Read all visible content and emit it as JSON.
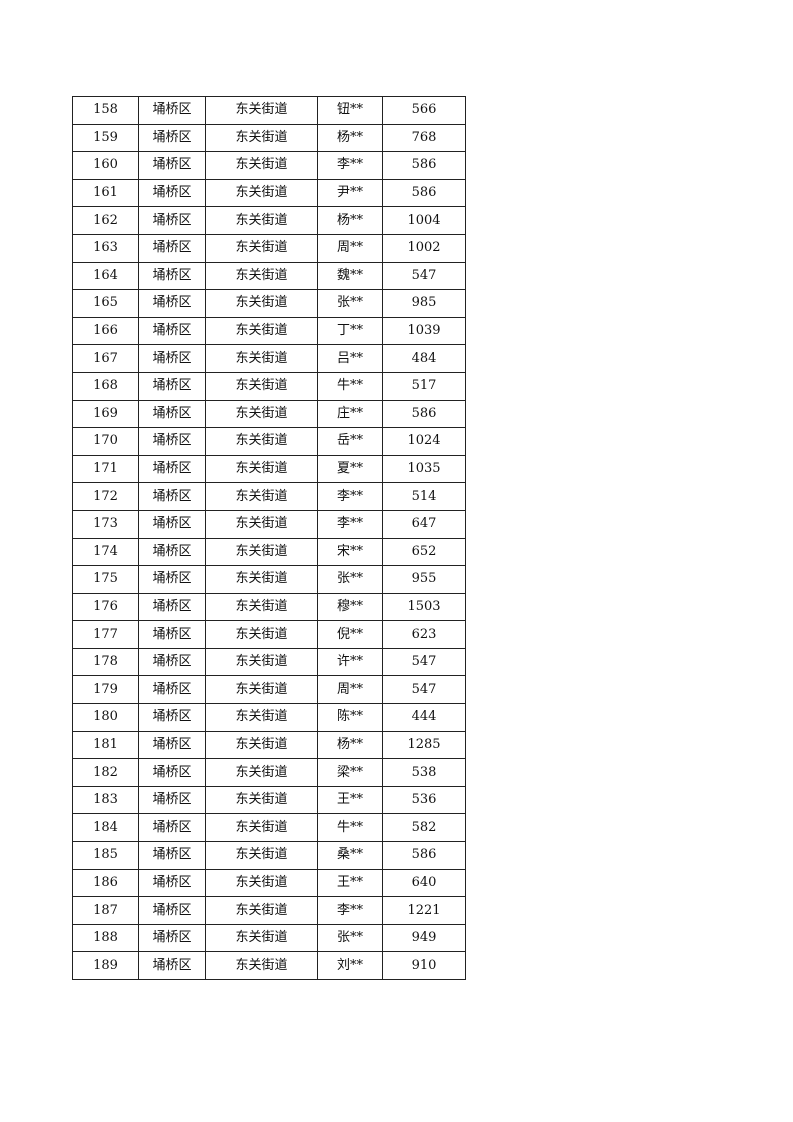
{
  "table": {
    "rows": [
      [
        "158",
        "埇桥区",
        "东关街道",
        "钮**",
        "566"
      ],
      [
        "159",
        "埇桥区",
        "东关街道",
        "杨**",
        "768"
      ],
      [
        "160",
        "埇桥区",
        "东关街道",
        "李**",
        "586"
      ],
      [
        "161",
        "埇桥区",
        "东关街道",
        "尹**",
        "586"
      ],
      [
        "162",
        "埇桥区",
        "东关街道",
        "杨**",
        "1004"
      ],
      [
        "163",
        "埇桥区",
        "东关街道",
        "周**",
        "1002"
      ],
      [
        "164",
        "埇桥区",
        "东关街道",
        "魏**",
        "547"
      ],
      [
        "165",
        "埇桥区",
        "东关街道",
        "张**",
        "985"
      ],
      [
        "166",
        "埇桥区",
        "东关街道",
        "丁**",
        "1039"
      ],
      [
        "167",
        "埇桥区",
        "东关街道",
        "吕**",
        "484"
      ],
      [
        "168",
        "埇桥区",
        "东关街道",
        "牛**",
        "517"
      ],
      [
        "169",
        "埇桥区",
        "东关街道",
        "庄**",
        "586"
      ],
      [
        "170",
        "埇桥区",
        "东关街道",
        "岳**",
        "1024"
      ],
      [
        "171",
        "埇桥区",
        "东关街道",
        "夏**",
        "1035"
      ],
      [
        "172",
        "埇桥区",
        "东关街道",
        "李**",
        "514"
      ],
      [
        "173",
        "埇桥区",
        "东关街道",
        "李**",
        "647"
      ],
      [
        "174",
        "埇桥区",
        "东关街道",
        "宋**",
        "652"
      ],
      [
        "175",
        "埇桥区",
        "东关街道",
        "张**",
        "955"
      ],
      [
        "176",
        "埇桥区",
        "东关街道",
        "穆**",
        "1503"
      ],
      [
        "177",
        "埇桥区",
        "东关街道",
        "倪**",
        "623"
      ],
      [
        "178",
        "埇桥区",
        "东关街道",
        "许**",
        "547"
      ],
      [
        "179",
        "埇桥区",
        "东关街道",
        "周**",
        "547"
      ],
      [
        "180",
        "埇桥区",
        "东关街道",
        "陈**",
        "444"
      ],
      [
        "181",
        "埇桥区",
        "东关街道",
        "杨**",
        "1285"
      ],
      [
        "182",
        "埇桥区",
        "东关街道",
        "梁**",
        "538"
      ],
      [
        "183",
        "埇桥区",
        "东关街道",
        "王**",
        "536"
      ],
      [
        "184",
        "埇桥区",
        "东关街道",
        "牛**",
        "582"
      ],
      [
        "185",
        "埇桥区",
        "东关街道",
        "桑**",
        "586"
      ],
      [
        "186",
        "埇桥区",
        "东关街道",
        "王**",
        "640"
      ],
      [
        "187",
        "埇桥区",
        "东关街道",
        "李**",
        "1221"
      ],
      [
        "188",
        "埇桥区",
        "东关街道",
        "张**",
        "949"
      ],
      [
        "189",
        "埇桥区",
        "东关街道",
        "刘**",
        "910"
      ]
    ]
  }
}
